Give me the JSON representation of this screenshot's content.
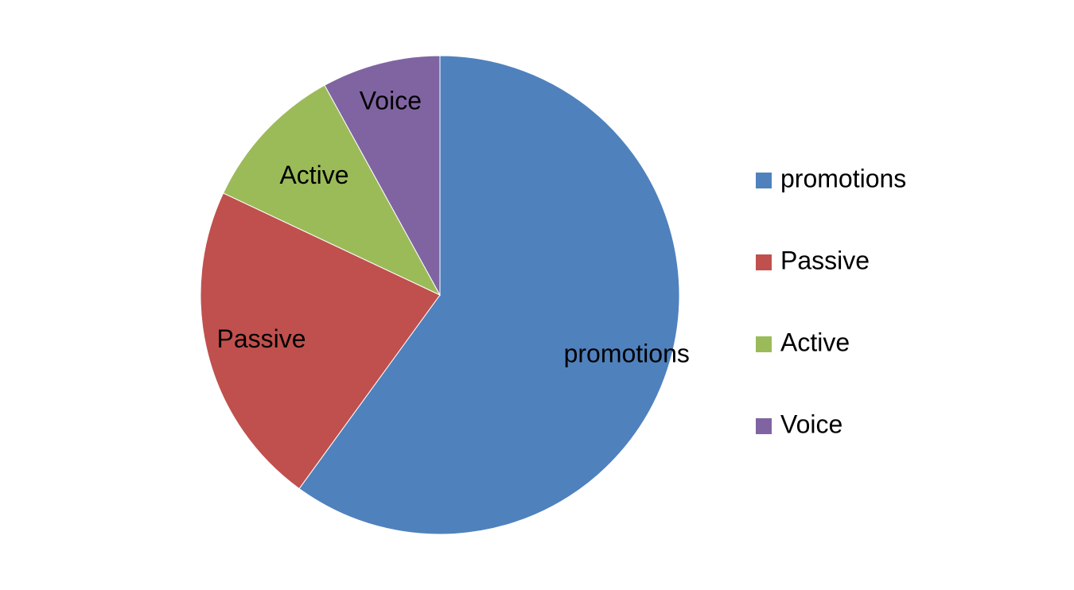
{
  "chart_data": {
    "type": "pie",
    "title": "",
    "categories": [
      "promotions",
      "Passive",
      "Active",
      "Voice"
    ],
    "values": [
      60,
      22,
      10,
      8
    ],
    "colors": [
      "#4F81BD",
      "#C0504D",
      "#9BBB59",
      "#8064A2"
    ],
    "start": "top",
    "direction": "clockwise",
    "legend": {
      "position": "right"
    },
    "show_category_labels": true
  }
}
